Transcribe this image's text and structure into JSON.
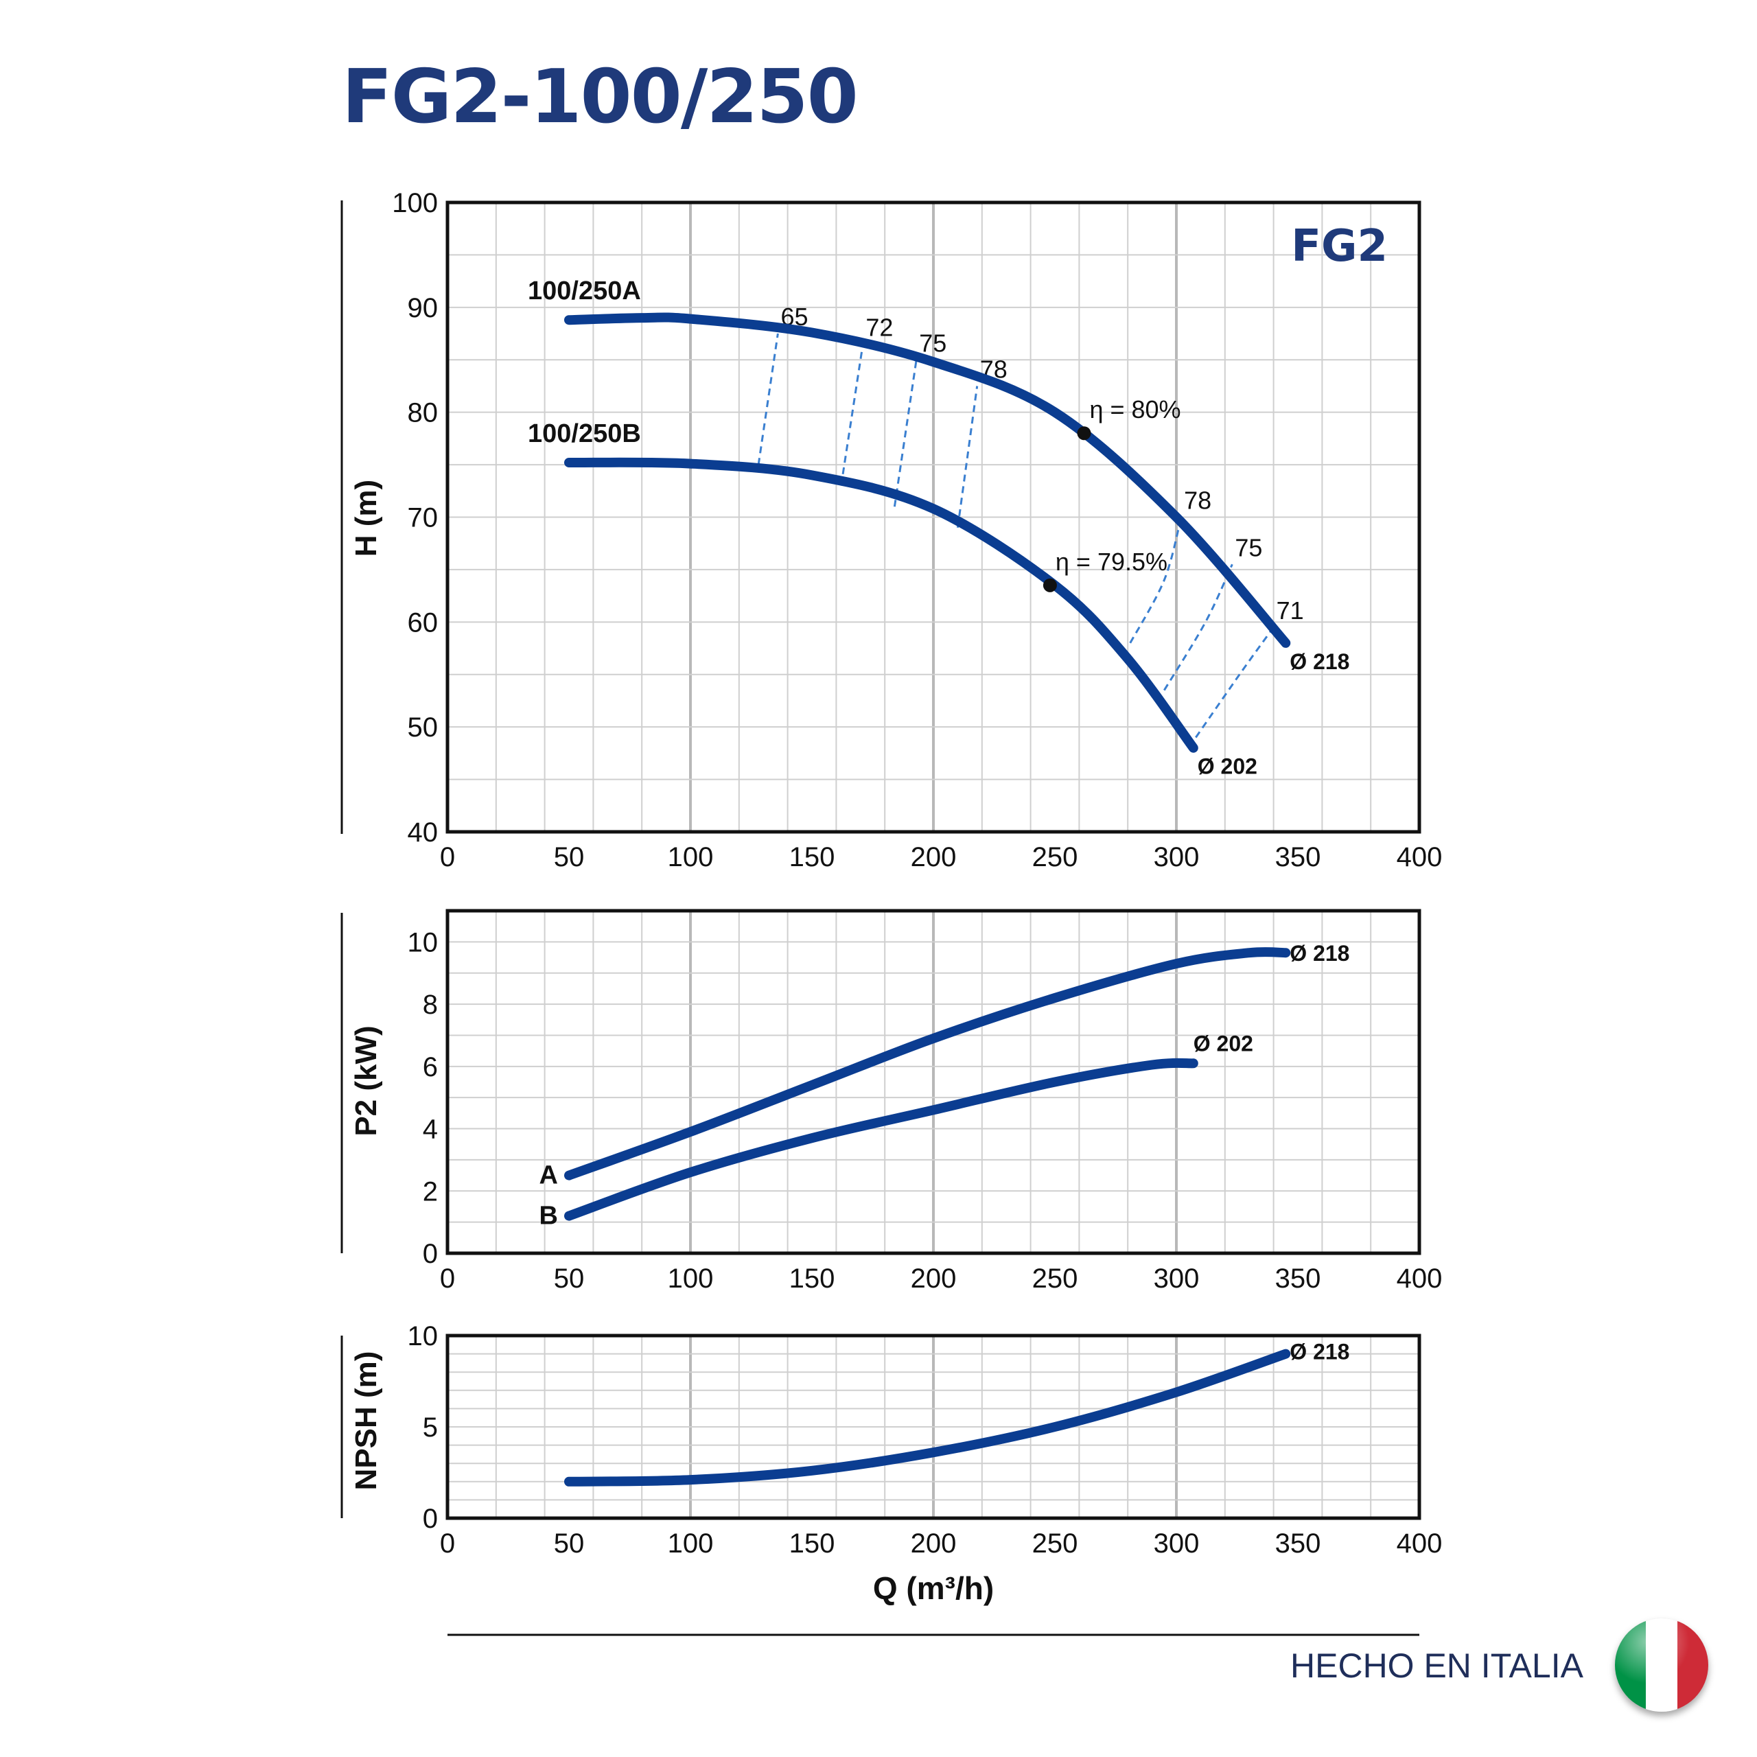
{
  "title": "FG2-100/250",
  "footer": {
    "made_in": "HECHO EN ITALIA",
    "flag_icon": "italy-flag-icon",
    "flag_colors": [
      "#009246",
      "#ffffff",
      "#ce2b37"
    ]
  },
  "colors": {
    "curve": "#0b3d91",
    "efficiency": "#3a7fd0",
    "title": "#1f3a7a",
    "grid": "#bdbdbd"
  },
  "chart_data": [
    {
      "id": "head",
      "type": "line",
      "badge": "FG2",
      "ylabel": "H (m)",
      "xlabel": "",
      "xlim": [
        0,
        400
      ],
      "ylim": [
        40,
        100
      ],
      "xticks": [
        "0",
        "50",
        "100",
        "150",
        "200",
        "250",
        "300",
        "350",
        "400"
      ],
      "yticks": [
        "40",
        "50",
        "60",
        "70",
        "80",
        "90",
        "100"
      ],
      "grid": true,
      "series": [
        {
          "name": "100/250A",
          "diameter": "Ø 218",
          "x": [
            50,
            80,
            100,
            150,
            200,
            250,
            300,
            345
          ],
          "y": [
            88.8,
            89.0,
            88.9,
            87.6,
            84.8,
            80.0,
            70.0,
            58.0
          ]
        },
        {
          "name": "100/250B",
          "diameter": "Ø 202",
          "x": [
            50,
            100,
            150,
            200,
            250,
            280,
            307
          ],
          "y": [
            75.2,
            75.1,
            74.0,
            70.8,
            63.5,
            56.5,
            48.0
          ]
        }
      ],
      "best_efficiency": [
        {
          "label": "η = 80%",
          "x": 262,
          "y": 78
        },
        {
          "label": "η = 79.5%",
          "x": 248,
          "y": 63.5
        }
      ],
      "efficiency_curves": [
        {
          "label": "65",
          "points": [
            [
              128,
              75
            ],
            [
              136,
              87.5
            ]
          ]
        },
        {
          "label": "72",
          "points": [
            [
              162,
              73
            ],
            [
              171,
              86.5
            ]
          ]
        },
        {
          "label": "75",
          "points": [
            [
              184,
              71
            ],
            [
              193,
              85
            ]
          ]
        },
        {
          "label": "78",
          "points": [
            [
              210,
              69
            ],
            [
              218,
              82.5
            ]
          ]
        },
        {
          "label": "78",
          "points": [
            [
              281,
              58
            ],
            [
              295,
              64
            ],
            [
              302,
              70
            ]
          ]
        },
        {
          "label": "75",
          "points": [
            [
              295,
              53.5
            ],
            [
              312,
              60
            ],
            [
              323,
              65.5
            ]
          ]
        },
        {
          "label": "71",
          "points": [
            [
              308,
              49
            ],
            [
              326,
              55
            ],
            [
              340,
              59.5
            ]
          ]
        }
      ]
    },
    {
      "id": "power",
      "type": "line",
      "ylabel": "P2 (kW)",
      "xlabel": "",
      "xlim": [
        0,
        400
      ],
      "ylim": [
        0,
        11
      ],
      "xticks": [
        "0",
        "50",
        "100",
        "150",
        "200",
        "250",
        "300",
        "350",
        "400"
      ],
      "yticks": [
        "0",
        "2",
        "4",
        "6",
        "8",
        "10"
      ],
      "grid": true,
      "series": [
        {
          "name": "A",
          "diameter": "Ø 218",
          "x": [
            50,
            100,
            150,
            200,
            250,
            300,
            330,
            345
          ],
          "y": [
            2.5,
            3.9,
            5.4,
            6.9,
            8.2,
            9.3,
            9.65,
            9.65
          ]
        },
        {
          "name": "B",
          "diameter": "Ø 202",
          "x": [
            50,
            100,
            150,
            200,
            250,
            290,
            307
          ],
          "y": [
            1.2,
            2.6,
            3.7,
            4.6,
            5.5,
            6.05,
            6.1
          ]
        }
      ]
    },
    {
      "id": "npsh",
      "type": "line",
      "ylabel": "NPSH (m)",
      "xlabel": "Q (m³/h)",
      "xlim": [
        0,
        400
      ],
      "ylim": [
        0,
        10
      ],
      "xticks": [
        "0",
        "50",
        "100",
        "150",
        "200",
        "250",
        "300",
        "350",
        "400"
      ],
      "yticks": [
        "0",
        "5",
        "10"
      ],
      "grid": true,
      "series": [
        {
          "name": "",
          "diameter": "Ø 218",
          "x": [
            50,
            100,
            150,
            200,
            250,
            300,
            345
          ],
          "y": [
            2.0,
            2.1,
            2.6,
            3.6,
            5.0,
            6.9,
            9.0
          ]
        }
      ]
    }
  ]
}
